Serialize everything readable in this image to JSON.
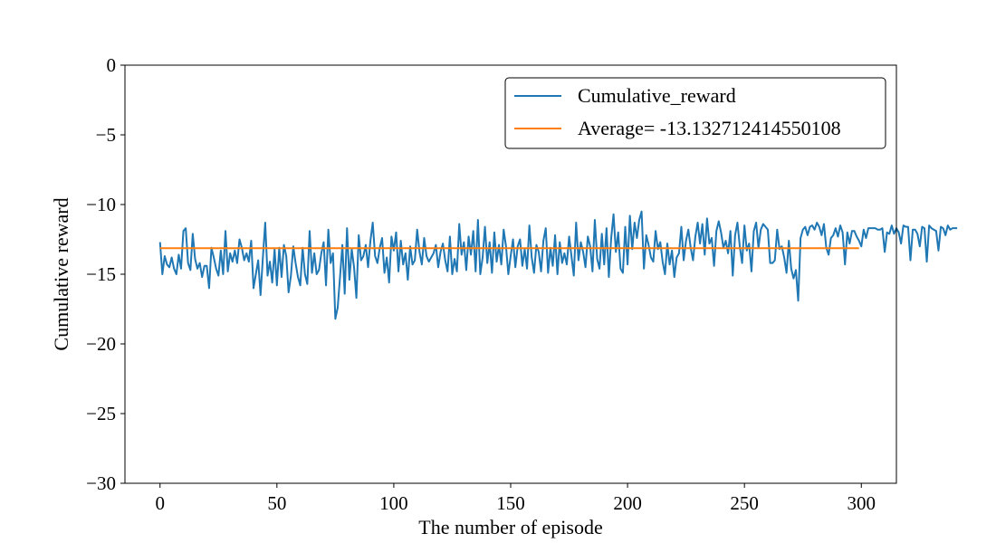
{
  "chart_data": {
    "type": "line",
    "xlabel": "The number of episode",
    "ylabel": "Cumulative reward",
    "xlim": [
      -15,
      315
    ],
    "ylim": [
      -30,
      0
    ],
    "xticks": [
      0,
      50,
      100,
      150,
      200,
      250,
      300
    ],
    "yticks": [
      0,
      -5,
      -10,
      -15,
      -20,
      -25,
      -30
    ],
    "xtick_labels": [
      "0",
      "50",
      "100",
      "150",
      "200",
      "250",
      "300"
    ],
    "ytick_labels": [
      "0",
      "−5",
      "−10",
      "−15",
      "−20",
      "−25",
      "−30"
    ],
    "legend_position": "upper right",
    "series": [
      {
        "name": "Cumulative_reward",
        "color": "#1f77b4",
        "x_start": 0,
        "x_step": 1,
        "values": [
          -12.7,
          -15.0,
          -13.7,
          -14.3,
          -14.5,
          -13.8,
          -14.6,
          -15.0,
          -13.6,
          -14.6,
          -11.9,
          -11.7,
          -14.2,
          -14.7,
          -12.1,
          -13.9,
          -14.6,
          -14.2,
          -15.2,
          -14.4,
          -14.4,
          -16.0,
          -13.1,
          -13.8,
          -14.6,
          -15.1,
          -13.3,
          -15.0,
          -11.9,
          -14.8,
          -13.5,
          -14.1,
          -13.3,
          -14.2,
          -12.5,
          -13.1,
          -14.0,
          -13.5,
          -14.1,
          -12.6,
          -16.0,
          -15.0,
          -14.0,
          -16.5,
          -13.8,
          -11.3,
          -15.1,
          -14.1,
          -15.6,
          -13.2,
          -15.8,
          -13.1,
          -15.2,
          -12.9,
          -13.7,
          -16.3,
          -15.1,
          -13.0,
          -14.2,
          -15.2,
          -15.8,
          -13.1,
          -15.0,
          -15.7,
          -11.9,
          -14.9,
          -13.5,
          -15.0,
          -14.7,
          -13.5,
          -12.7,
          -15.8,
          -11.8,
          -14.2,
          -13.5,
          -18.2,
          -17.4,
          -15.2,
          -12.9,
          -16.4,
          -11.7,
          -15.4,
          -13.2,
          -14.5,
          -16.7,
          -12.2,
          -14.0,
          -13.7,
          -12.9,
          -14.5,
          -12.6,
          -11.3,
          -13.7,
          -14.2,
          -13.1,
          -12.4,
          -14.9,
          -13.8,
          -15.6,
          -12.3,
          -13.3,
          -12.0,
          -14.8,
          -12.6,
          -14.3,
          -13.5,
          -15.4,
          -13.0,
          -14.3,
          -14.0,
          -11.8,
          -13.4,
          -14.3,
          -12.4,
          -13.7,
          -14.1,
          -13.8,
          -13.5,
          -12.9,
          -14.5,
          -13.4,
          -12.8,
          -14.0,
          -14.8,
          -12.3,
          -15.0,
          -13.9,
          -14.8,
          -11.4,
          -13.6,
          -12.7,
          -14.7,
          -12.3,
          -13.6,
          -11.9,
          -14.8,
          -11.1,
          -15.0,
          -13.8,
          -11.6,
          -14.2,
          -12.7,
          -14.9,
          -12.0,
          -14.1,
          -12.9,
          -14.3,
          -11.8,
          -13.0,
          -15.0,
          -13.7,
          -12.5,
          -14.5,
          -13.0,
          -12.5,
          -14.4,
          -13.2,
          -14.6,
          -11.5,
          -13.8,
          -14.9,
          -12.9,
          -13.4,
          -14.8,
          -12.6,
          -11.7,
          -14.9,
          -13.1,
          -14.4,
          -12.2,
          -15.0,
          -12.7,
          -14.2,
          -13.5,
          -14.3,
          -12.3,
          -13.7,
          -15.1,
          -11.3,
          -14.0,
          -12.7,
          -13.4,
          -14.5,
          -12.3,
          -13.0,
          -14.8,
          -11.1,
          -13.9,
          -14.6,
          -12.1,
          -14.3,
          -11.7,
          -15.2,
          -12.4,
          -10.7,
          -13.4,
          -12.0,
          -14.6,
          -14.9,
          -11.6,
          -14.3,
          -10.8,
          -13.2,
          -11.3,
          -12.4,
          -11.1,
          -10.5,
          -14.6,
          -12.2,
          -12.9,
          -13.8,
          -14.1,
          -11.9,
          -13.2,
          -12.7,
          -14.1,
          -15.0,
          -12.8,
          -14.3,
          -13.3,
          -15.2,
          -13.8,
          -13.5,
          -11.6,
          -14.0,
          -12.6,
          -11.8,
          -13.1,
          -14.0,
          -12.3,
          -11.3,
          -12.8,
          -11.4,
          -13.6,
          -11.0,
          -12.8,
          -12.4,
          -14.4,
          -11.9,
          -11.2,
          -12.0,
          -13.1,
          -12.6,
          -13.5,
          -11.9,
          -15.1,
          -12.2,
          -11.3,
          -13.0,
          -14.2,
          -11.5,
          -13.3,
          -12.8,
          -14.8,
          -11.9,
          -11.3,
          -13.1,
          -11.8,
          -11.4,
          -11.6,
          -11.8,
          -14.2,
          -14.2,
          -14.0,
          -11.8,
          -13.2,
          -13.0,
          -13.8,
          -14.9,
          -12.6,
          -14.6,
          -15.3,
          -14.7,
          -16.9,
          -12.4,
          -11.8,
          -11.6,
          -12.2,
          -11.6,
          -11.5,
          -11.8,
          -11.3,
          -11.6,
          -12.2,
          -11.4,
          -13.1,
          -13.6,
          -12.4,
          -12.2,
          -11.7,
          -12.3,
          -11.5,
          -12.0,
          -14.3,
          -12.0,
          -12.8,
          -11.9,
          -11.9,
          -12.3,
          -12.6,
          -13.0,
          -11.8,
          -12.4,
          -11.7,
          -11.7,
          -11.7,
          -11.7,
          -11.8,
          -11.8,
          -11.7,
          -13.4,
          -12.0,
          -12.1,
          -11.5,
          -12.1,
          -11.7,
          -12.0,
          -12.8,
          -11.5,
          -11.6,
          -11.6,
          -14.0,
          -11.8,
          -11.8,
          -12.1,
          -13.0,
          -11.6,
          -11.7,
          -14.1,
          -11.5,
          -11.7,
          -11.8,
          -11.9,
          -13.3,
          -11.6,
          -11.7,
          -12.2,
          -11.5,
          -11.8,
          -11.7,
          -11.7,
          -11.7
        ]
      },
      {
        "name": "Average= -13.132712414550108",
        "color": "#ff7f0e",
        "constant_value": -13.132712414550108,
        "x_range": [
          0,
          299
        ]
      }
    ]
  }
}
